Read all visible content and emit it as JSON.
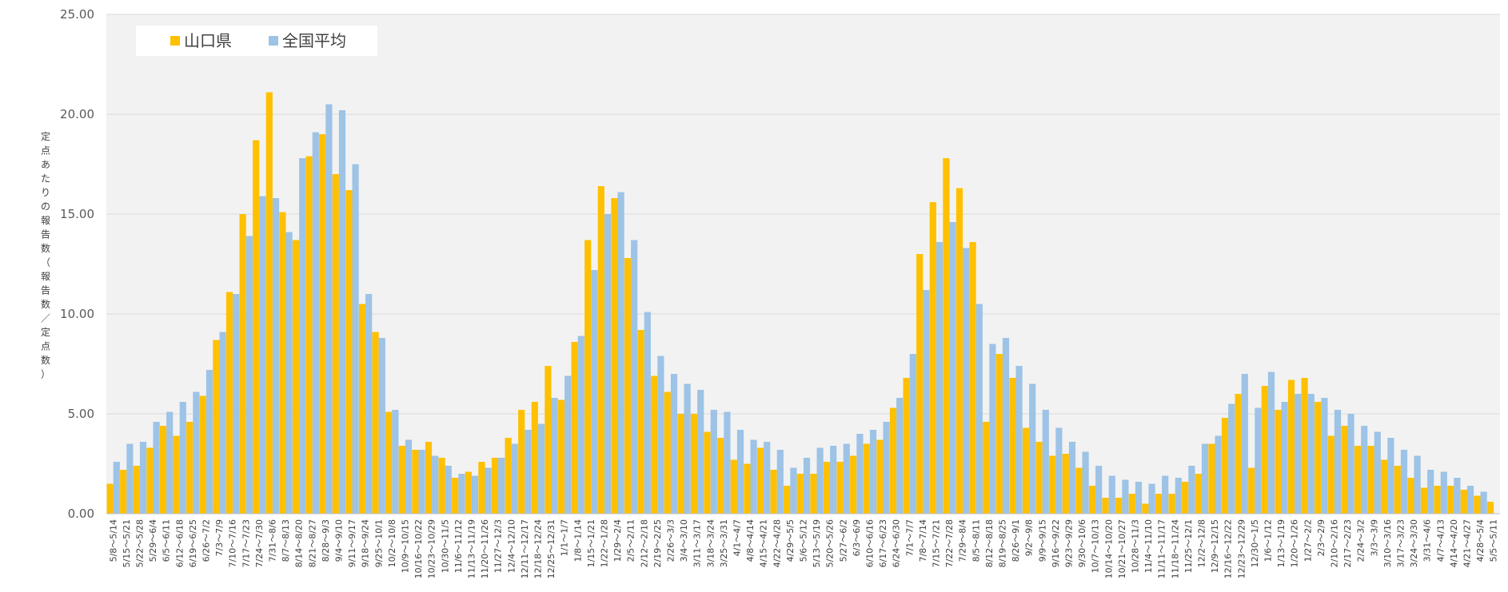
{
  "chart_data": {
    "type": "bar",
    "title": "",
    "ylabel": "定点あたりの報告数（報告数／定点数）",
    "ylim": [
      0,
      25
    ],
    "yticks": [
      "0.00",
      "5.00",
      "10.00",
      "15.00",
      "20.00",
      "25.00"
    ],
    "grid": true,
    "legend_position": "top-left",
    "colors": {
      "山口県": "#FFC000",
      "全国平均": "#9DC3E6",
      "plot_bg": "#F2F2F2",
      "grid": "#D9D9D9"
    },
    "categories": [
      "5/8～5/14",
      "5/15～5/21",
      "5/22～5/28",
      "5/29～6/4",
      "6/5～6/11",
      "6/12～6/18",
      "6/19～6/25",
      "6/26～7/2",
      "7/3～7/9",
      "7/10～7/16",
      "7/17～7/23",
      "7/24～7/30",
      "7/31～8/6",
      "8/7～8/13",
      "8/14～8/20",
      "8/21～8/27",
      "8/28～9/3",
      "9/4～9/10",
      "9/11～9/17",
      "9/18～9/24",
      "9/25～10/1",
      "10/2～10/8",
      "10/9～10/15",
      "10/16～10/22",
      "10/23～10/29",
      "10/30～11/5",
      "11/6～11/12",
      "11/13～11/19",
      "11/20～11/26",
      "11/27～12/3",
      "12/4～12/10",
      "12/11～12/17",
      "12/18～12/24",
      "12/25～12/31",
      "1/1～1/7",
      "1/8～1/14",
      "1/15～1/21",
      "1/22～1/28",
      "1/29～2/4",
      "2/5～2/11",
      "2/12～2/18",
      "2/19～2/25",
      "2/26～3/3",
      "3/4～3/10",
      "3/11～3/17",
      "3/18～3/24",
      "3/25～3/31",
      "4/1～4/7",
      "4/8～4/14",
      "4/15～4/21",
      "4/22～4/28",
      "4/29～5/5",
      "5/6～5/12",
      "5/13～5/19",
      "5/20～5/26",
      "5/27～6/2",
      "6/3～6/9",
      "6/10～6/16",
      "6/17～6/23",
      "6/24～6/30",
      "7/1～7/7",
      "7/8～7/14",
      "7/15～7/21",
      "7/22～7/28",
      "7/29～8/4",
      "8/5～8/11",
      "8/12～8/18",
      "8/19～8/25",
      "8/26～9/1",
      "9/2～9/8",
      "9/9～9/15",
      "9/16～9/22",
      "9/23～9/29",
      "9/30～10/6",
      "10/7～10/13",
      "10/14～10/20",
      "10/21～10/27",
      "10/28～11/3",
      "11/4～11/10",
      "11/11～11/17",
      "11/18～11/24",
      "11/25～12/1",
      "12/2～12/8",
      "12/9～12/15",
      "12/16～12/22",
      "12/23～12/29",
      "12/30～1/5",
      "1/6～1/12",
      "1/13～1/19",
      "1/20～1/26",
      "1/27～2/2",
      "2/3～2/9",
      "2/10～2/16",
      "2/17～2/23",
      "2/24～3/2",
      "3/3～3/9",
      "3/10～3/16",
      "3/17～3/23",
      "3/24～3/30",
      "3/31～4/6",
      "4/7～4/13",
      "4/14～4/20",
      "4/21～4/27",
      "4/28～5/4",
      "5/5～5/11"
    ],
    "series": [
      {
        "name": "山口県",
        "values": [
          1.5,
          2.2,
          2.4,
          3.3,
          4.4,
          3.9,
          4.6,
          5.9,
          8.7,
          11.1,
          15.0,
          18.7,
          21.1,
          15.1,
          13.7,
          17.9,
          19.0,
          17.0,
          16.2,
          10.5,
          9.1,
          5.1,
          3.4,
          3.2,
          3.6,
          2.8,
          1.8,
          2.1,
          2.6,
          2.8,
          3.8,
          5.2,
          5.6,
          7.4,
          5.7,
          8.6,
          13.7,
          16.4,
          15.8,
          12.8,
          9.2,
          6.9,
          6.1,
          5.0,
          5.0,
          4.1,
          3.8,
          2.7,
          2.5,
          3.3,
          2.2,
          1.4,
          2.0,
          2.0,
          2.6,
          2.6,
          2.9,
          3.5,
          3.7,
          5.3,
          6.8,
          13.0,
          15.6,
          17.8,
          16.3,
          13.6,
          4.6,
          8.0,
          6.8,
          4.3,
          3.6,
          2.9,
          3.0,
          2.3,
          1.4,
          0.8,
          0.8,
          1.0,
          0.5,
          1.0,
          1.0,
          1.6,
          2.0,
          3.5,
          4.8,
          6.0,
          2.3,
          6.4,
          5.2,
          6.7,
          6.8,
          5.6,
          3.9,
          4.4,
          3.4,
          3.4,
          2.7,
          2.4,
          1.8,
          1.3,
          1.4,
          1.4,
          1.2,
          0.9,
          0.6
        ]
      },
      {
        "name": "全国平均",
        "values": [
          2.6,
          3.5,
          3.6,
          4.6,
          5.1,
          5.6,
          6.1,
          7.2,
          9.1,
          11.0,
          13.9,
          15.9,
          15.8,
          14.1,
          17.8,
          19.1,
          20.5,
          20.2,
          17.5,
          11.0,
          8.8,
          5.2,
          3.7,
          3.2,
          2.9,
          2.4,
          2.0,
          1.9,
          2.3,
          2.8,
          3.5,
          4.2,
          4.5,
          5.8,
          6.9,
          8.9,
          12.2,
          15.0,
          16.1,
          13.7,
          10.1,
          7.9,
          7.0,
          6.5,
          6.2,
          5.2,
          5.1,
          4.2,
          3.7,
          3.6,
          3.2,
          2.3,
          2.8,
          3.3,
          3.4,
          3.5,
          4.0,
          4.2,
          4.6,
          5.8,
          8.0,
          11.2,
          13.6,
          14.6,
          13.3,
          10.5,
          8.5,
          8.8,
          7.4,
          6.5,
          5.2,
          4.3,
          3.6,
          3.1,
          2.4,
          1.9,
          1.7,
          1.6,
          1.5,
          1.9,
          1.8,
          2.4,
          3.5,
          3.9,
          5.5,
          7.0,
          5.3,
          7.1,
          5.6,
          6.0,
          6.0,
          5.8,
          5.2,
          5.0,
          4.4,
          4.1,
          3.8,
          3.2,
          2.9,
          2.2,
          2.1,
          1.8,
          1.4,
          1.1,
          0.0
        ]
      }
    ]
  }
}
